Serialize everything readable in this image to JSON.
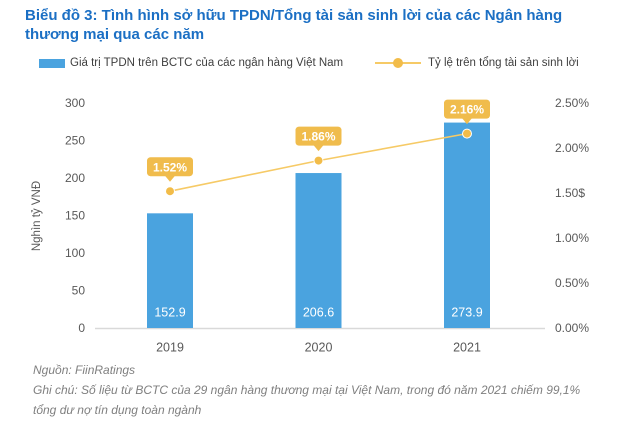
{
  "title": "Biểu đồ 3: Tình hình sở hữu TPDN/Tổng tài sản sinh lời của các Ngân hàng thương mại qua các năm",
  "legend": {
    "bar_label": "Giá trị TPDN trên BCTC của các ngân hàng Việt Nam",
    "line_label": "Tỷ lệ trên tổng tài sản sinh lời"
  },
  "colors": {
    "title_blue": "#1b6fc4",
    "bar_blue": "#4aa3df",
    "line_yellow": "#f6ca66",
    "marker_yellow": "#f2bc49",
    "bubble_yellow": "#f0bc4c",
    "axis_text": "#595959",
    "axis_line": "#d9d9d9",
    "bar_value_text": "#ffffff",
    "bubble_text": "#ffffff"
  },
  "chart_data": {
    "type": "bar+line combo",
    "categories": [
      "2019",
      "2020",
      "2021"
    ],
    "series": [
      {
        "name": "Giá trị TPDN trên BCTC của các ngân hàng Việt Nam",
        "type": "bar",
        "axis": "left",
        "values": [
          152.9,
          206.6,
          273.9
        ],
        "labels": [
          "152.9",
          "206.6",
          "273.9"
        ]
      },
      {
        "name": "Tỷ lệ trên tổng tài sản sinh lời",
        "type": "line",
        "axis": "right",
        "values": [
          1.52,
          1.86,
          2.16
        ],
        "labels": [
          "1.52%",
          "1.86%",
          "2.16%"
        ]
      }
    ],
    "left_axis": {
      "title": "Nghìn tỷ VNĐ",
      "min": 0,
      "max": 300,
      "tick_labels": [
        "0",
        "50",
        "100",
        "150",
        "200",
        "250",
        "300"
      ]
    },
    "right_axis": {
      "min": 0,
      "max": 2.5,
      "tick_labels": [
        "0.00%",
        "0.50%",
        "1.00%",
        "1.50$",
        "2.00%",
        "2.50%"
      ]
    },
    "grid": false,
    "legend_position": "top"
  },
  "footer": {
    "source": "Nguồn: FiinRatings",
    "note": "Ghi chú: Số liệu từ BCTC của 29 ngân hàng thương mại tại Việt Nam, trong đó năm 2021 chiếm 99,1% tổng dư nợ tín dụng toàn ngành"
  }
}
